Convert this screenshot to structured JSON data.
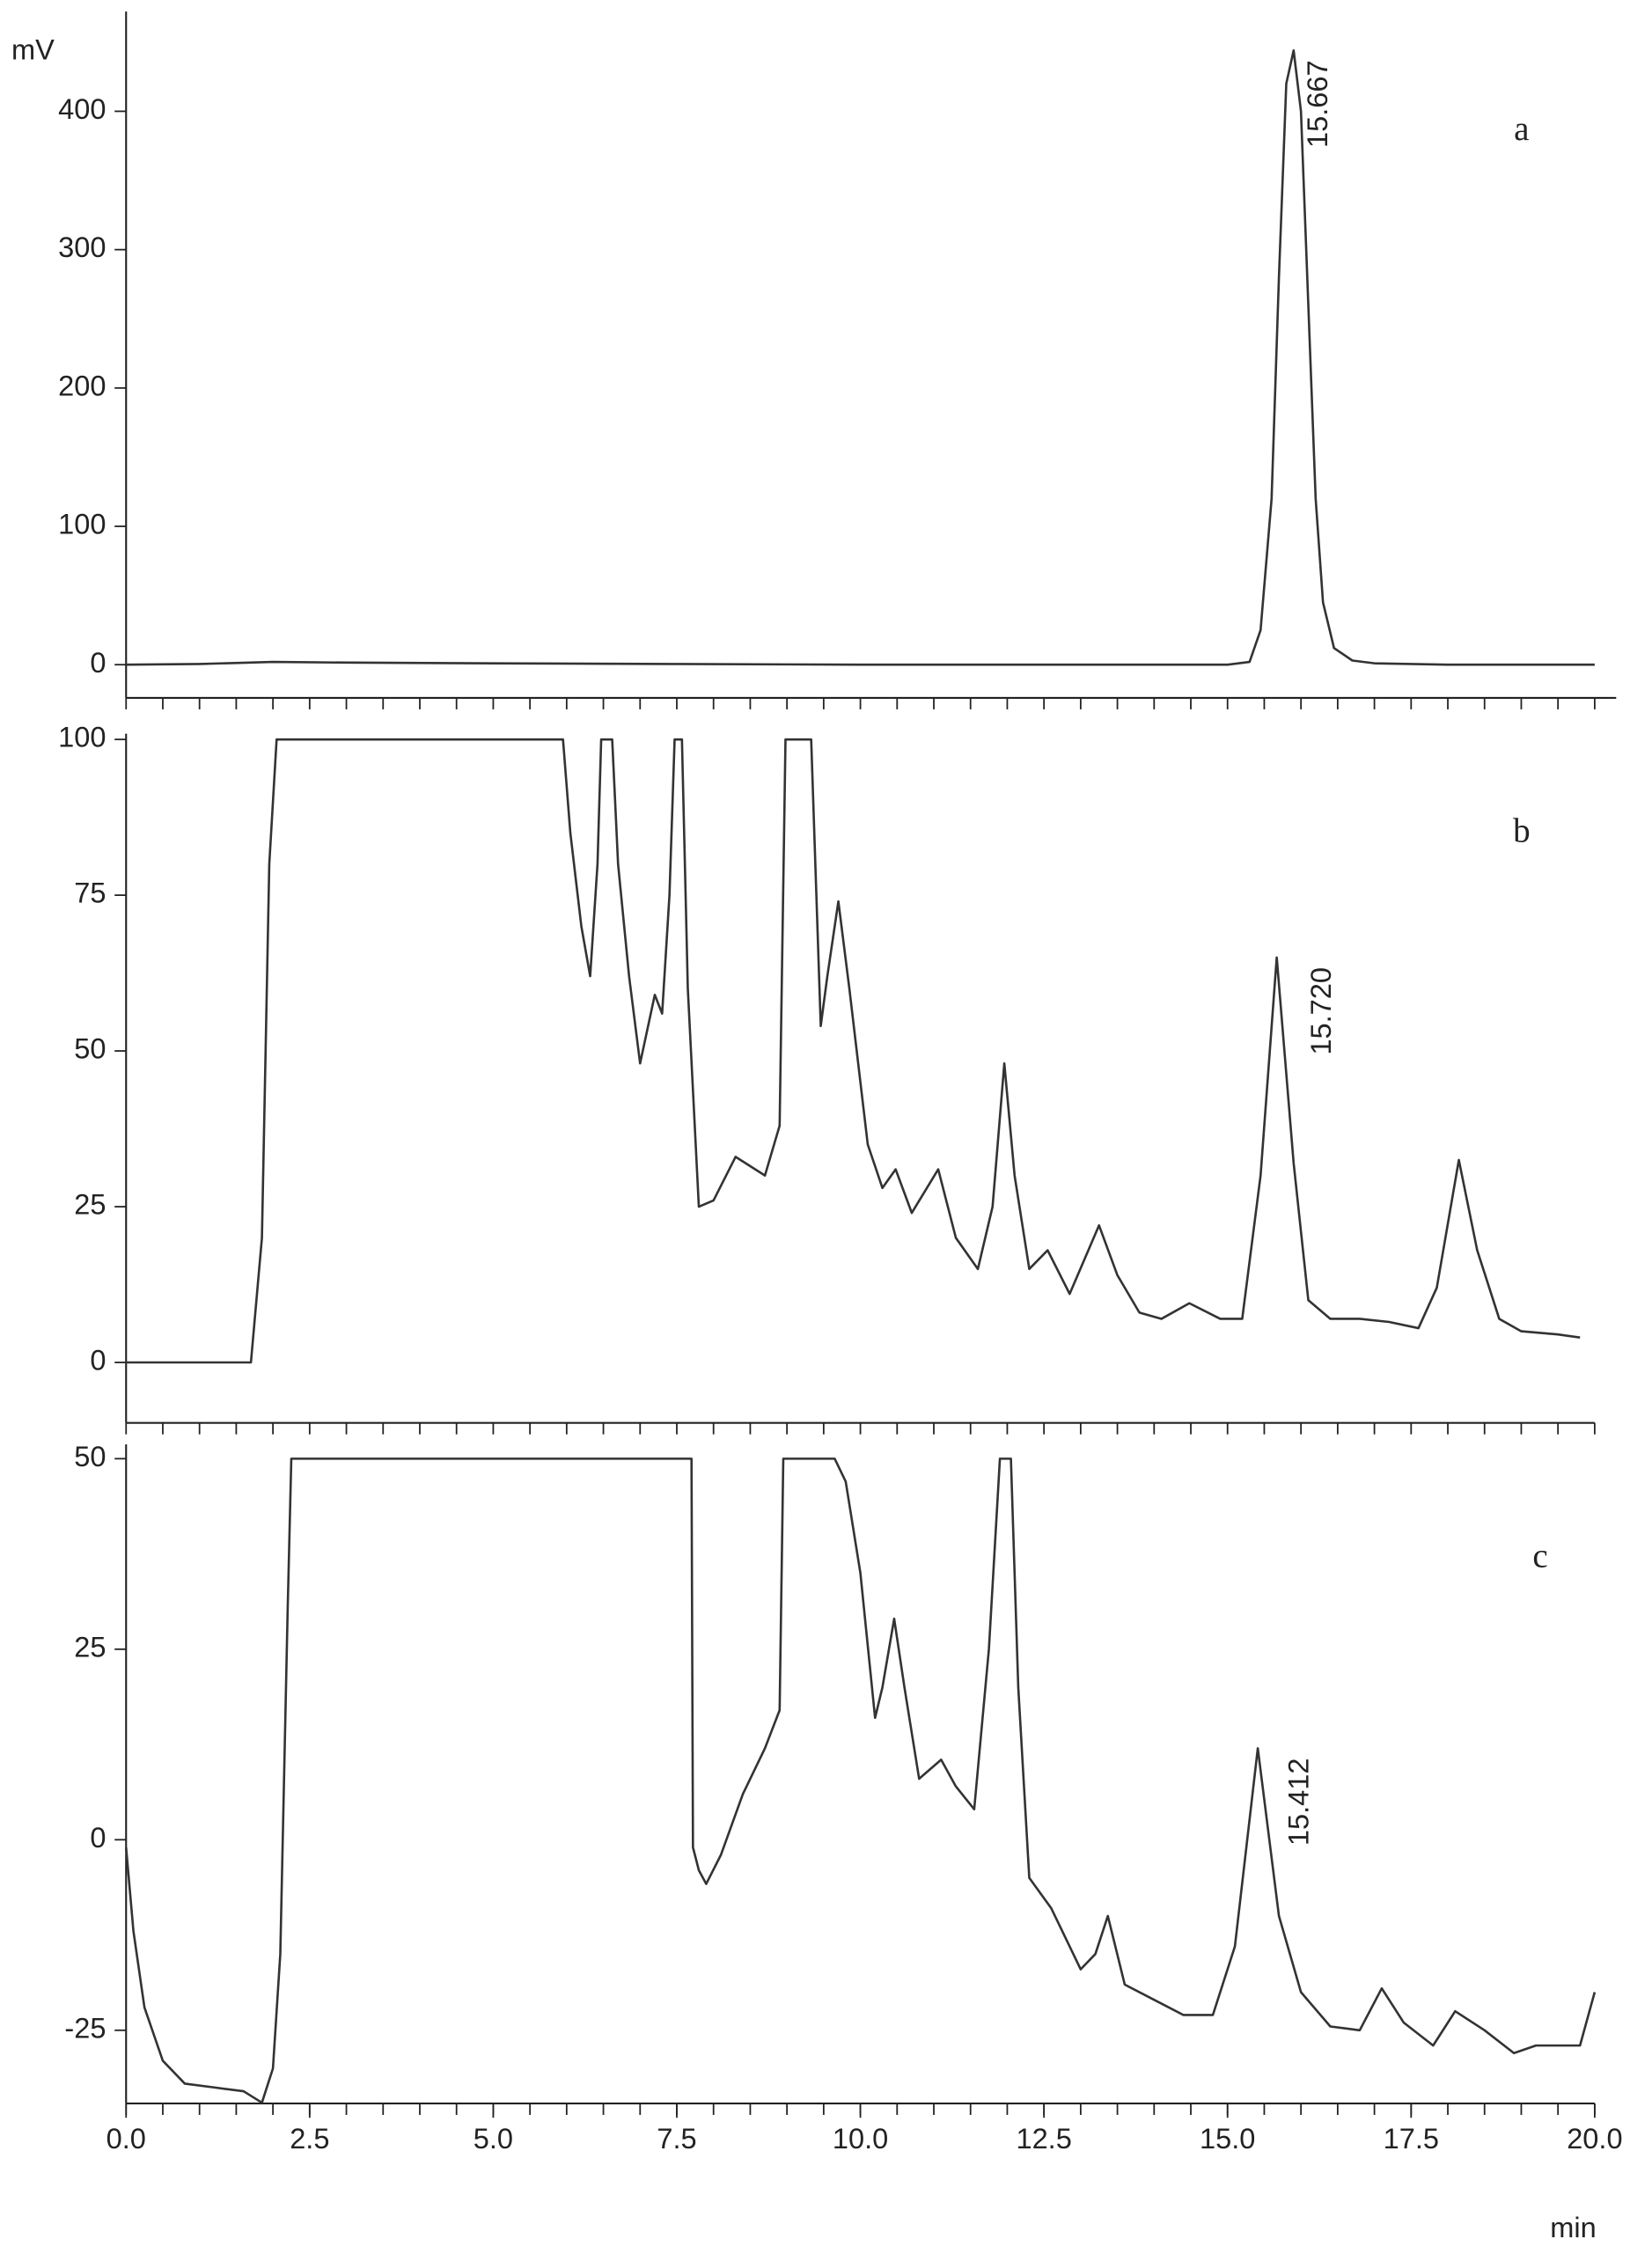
{
  "chart_data": [
    {
      "type": "line",
      "panel": "a",
      "y_label": "mV",
      "xlim": [
        0,
        20
      ],
      "ylim": [
        -24,
        470
      ],
      "yticks": [
        0,
        100,
        200,
        300,
        400
      ],
      "xminorticks": [
        0,
        0.5,
        1,
        1.5,
        2,
        2.5,
        3,
        3.5,
        4,
        4.5,
        5,
        5.5,
        6,
        6.5,
        7,
        7.5,
        8,
        8.5,
        9,
        9.5,
        10,
        10.5,
        11,
        11.5,
        12,
        12.5,
        13,
        13.5,
        14,
        14.5,
        15,
        15.5,
        16,
        16.5,
        17,
        17.5,
        18,
        18.5,
        19,
        19.5,
        20
      ],
      "annotations": [
        {
          "value": 15.667,
          "label": "15.667"
        }
      ],
      "series": [
        {
          "color": "#333333",
          "x": [
            0,
            1,
            2,
            3,
            5,
            7.5,
            10,
            12.5,
            14,
            15,
            15.3,
            15.45,
            15.6,
            15.7,
            15.8,
            15.9,
            16.0,
            16.1,
            16.2,
            16.3,
            16.45,
            16.7,
            17,
            18,
            20
          ],
          "values": [
            0,
            0.5,
            2,
            1.5,
            1,
            0.5,
            0,
            0,
            0,
            0,
            2,
            25,
            120,
            280,
            420,
            444,
            400,
            260,
            120,
            45,
            12,
            3,
            1,
            0,
            0
          ]
        }
      ]
    },
    {
      "type": "line",
      "panel": "b",
      "xlim": [
        0,
        20
      ],
      "ylim": [
        -9.7,
        100
      ],
      "yticks": [
        0,
        25,
        50,
        75,
        100
      ],
      "xminorticks": [
        0,
        0.5,
        1,
        1.5,
        2,
        2.5,
        3,
        3.5,
        4,
        4.5,
        5,
        5.5,
        6,
        6.5,
        7,
        7.5,
        8,
        8.5,
        9,
        9.5,
        10,
        10.5,
        11,
        11.5,
        12,
        12.5,
        13,
        13.5,
        14,
        14.5,
        15,
        15.5,
        16,
        16.5,
        17,
        17.5,
        18,
        18.5,
        19,
        19.5,
        20
      ],
      "annotations": [
        {
          "value": 15.72,
          "label": "15.720"
        }
      ],
      "series": [
        {
          "color": "#333333",
          "x": [
            0,
            1,
            1.7,
            1.85,
            1.95,
            2.05,
            5.95,
            6.05,
            6.2,
            6.32,
            6.42,
            6.47,
            6.62,
            6.7,
            6.85,
            7.0,
            7.2,
            7.3,
            7.4,
            7.47,
            7.57,
            7.65,
            7.8,
            8.0,
            8.3,
            8.7,
            8.9,
            8.98,
            9.33,
            9.46,
            9.55,
            9.7,
            9.85,
            10.1,
            10.3,
            10.48,
            10.7,
            11.06,
            11.3,
            11.6,
            11.8,
            11.96,
            12.1,
            12.3,
            12.55,
            12.85,
            13.25,
            13.5,
            13.8,
            14.1,
            14.48,
            14.9,
            15.2,
            15.45,
            15.67,
            15.9,
            16.1,
            16.4,
            16.8,
            17.2,
            17.6,
            17.85,
            18.15,
            18.4,
            18.7,
            19.0,
            19.5,
            19.8
          ],
          "values": [
            0,
            0,
            0,
            20,
            80,
            100,
            100,
            85,
            70,
            62,
            80,
            100,
            100,
            80,
            62,
            48,
            59,
            56,
            75,
            100,
            100,
            60,
            25,
            26,
            33,
            30,
            38,
            100,
            100,
            54,
            62,
            74,
            60,
            35,
            28,
            31,
            24,
            31,
            20,
            15,
            25,
            48,
            30,
            15,
            18,
            11,
            22,
            14,
            8,
            7,
            9.5,
            7,
            7,
            30,
            65,
            32,
            10,
            7,
            7,
            6.5,
            5.5,
            12,
            32.5,
            18,
            7,
            5,
            4.5,
            4
          ]
        }
      ]
    },
    {
      "type": "line",
      "panel": "c",
      "x_label": "min",
      "xlim": [
        0,
        20
      ],
      "ylim": [
        -34.6,
        50
      ],
      "yticks": [
        -25,
        0,
        25,
        50
      ],
      "xticks": [
        {
          "value": 0,
          "label": "0.0"
        },
        2.5,
        {
          "value": 5,
          "label": "5.0"
        },
        7.5,
        {
          "value": 10,
          "label": "10.0"
        },
        12.5,
        {
          "value": 15,
          "label": "15.0"
        },
        17.5,
        {
          "value": 20,
          "label": "20.0"
        }
      ],
      "xminorticks": [
        0,
        0.5,
        1,
        1.5,
        2,
        2.5,
        3,
        3.5,
        4,
        4.5,
        5,
        5.5,
        6,
        6.5,
        7,
        7.5,
        8,
        8.5,
        9,
        9.5,
        10,
        10.5,
        11,
        11.5,
        12,
        12.5,
        13,
        13.5,
        14,
        14.5,
        15,
        15.5,
        16,
        16.5,
        17,
        17.5,
        18,
        18.5,
        19,
        19.5,
        20
      ],
      "annotations": [
        {
          "value": 15.412,
          "label": "15.412"
        }
      ],
      "series": [
        {
          "color": "#333333",
          "x": [
            0,
            0.1,
            0.25,
            0.5,
            0.8,
            1.2,
            1.6,
            1.85,
            2.0,
            2.1,
            2.2,
            2.25,
            7.7,
            7.72,
            7.8,
            7.9,
            8.1,
            8.4,
            8.7,
            8.9,
            8.95,
            9.65,
            9.8,
            10.0,
            10.2,
            10.3,
            10.46,
            10.6,
            10.8,
            11.1,
            11.3,
            11.55,
            11.75,
            11.9,
            12.05,
            12.15,
            12.3,
            12.6,
            13.0,
            13.2,
            13.37,
            13.6,
            14.0,
            14.4,
            14.8,
            15.1,
            15.412,
            15.7,
            16.0,
            16.4,
            16.8,
            17.1,
            17.4,
            17.8,
            18.1,
            18.5,
            18.9,
            19.2,
            19.5,
            19.8,
            20.0
          ],
          "values": [
            -1,
            -12,
            -22,
            -29,
            -32,
            -32.5,
            -33,
            -34.5,
            -30,
            -15,
            30,
            50,
            50,
            -1,
            -4,
            -5.8,
            -2,
            6,
            12,
            17,
            50,
            50,
            47,
            35,
            16,
            20,
            29,
            20,
            8,
            10.5,
            7,
            4,
            25,
            50,
            50,
            20,
            -5,
            -9,
            -17,
            -15,
            -10,
            -19,
            -21,
            -23,
            -23,
            -14,
            12,
            -10,
            -20,
            -24.5,
            -25,
            -19.5,
            -24,
            -27,
            -22.5,
            -25,
            -28,
            -27,
            -27,
            -27,
            -20
          ]
        }
      ]
    }
  ]
}
